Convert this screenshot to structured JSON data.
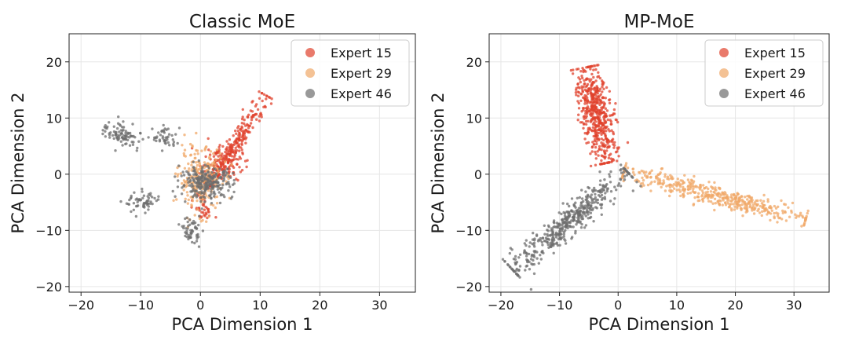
{
  "colors": {
    "expert_15": "#e0412c",
    "expert_29": "#f0a868",
    "expert_46": "#6e6e6e",
    "grid": "#e6e6e6",
    "axis": "#222222"
  },
  "chart_data": [
    {
      "type": "scatter",
      "title": "Classic MoE",
      "xlabel": "PCA Dimension 1",
      "ylabel": "PCA Dimension 2",
      "xlim": [
        -22,
        36
      ],
      "ylim": [
        -21,
        25
      ],
      "xticks": [
        -20,
        -10,
        0,
        10,
        20,
        30
      ],
      "yticks": [
        -20,
        -10,
        0,
        10,
        20
      ],
      "grid": true,
      "legend": "top-right",
      "series": [
        {
          "name": "Expert 15",
          "color_key": "expert_15",
          "clusters": [
            {
              "shape": "line",
              "x1": 1.5,
              "y1": -2,
              "x2": 11,
              "y2": 14,
              "n": 220,
              "spread": 0.7
            },
            {
              "shape": "blob",
              "cx": 3.5,
              "cy": 2,
              "sx": 1.8,
              "sy": 1.6,
              "n": 120
            },
            {
              "shape": "blob",
              "cx": 0.5,
              "cy": -6,
              "sx": 0.8,
              "sy": 1.5,
              "n": 40
            }
          ]
        },
        {
          "name": "Expert 29",
          "color_key": "expert_29",
          "clusters": [
            {
              "shape": "blob",
              "cx": 0,
              "cy": -1,
              "sx": 1.8,
              "sy": 2.8,
              "n": 260
            }
          ]
        },
        {
          "name": "Expert 46",
          "color_key": "expert_46",
          "clusters": [
            {
              "shape": "blob",
              "cx": 1,
              "cy": -1.5,
              "sx": 2.2,
              "sy": 1.4,
              "n": 260
            },
            {
              "shape": "line",
              "x1": -16,
              "y1": 8.5,
              "x2": -10,
              "y2": 5.5,
              "n": 90,
              "spread": 0.9
            },
            {
              "shape": "blob",
              "cx": -6,
              "cy": 6.5,
              "sx": 1.0,
              "sy": 1.0,
              "n": 45
            },
            {
              "shape": "blob",
              "cx": -9.5,
              "cy": -5,
              "sx": 1.6,
              "sy": 0.9,
              "n": 60
            },
            {
              "shape": "blob",
              "cx": -1.5,
              "cy": -10,
              "sx": 0.7,
              "sy": 1.2,
              "n": 55
            }
          ]
        }
      ]
    },
    {
      "type": "scatter",
      "title": "MP-MoE",
      "xlabel": "PCA Dimension 1",
      "ylabel": "PCA Dimension 2",
      "xlim": [
        -22,
        36
      ],
      "ylim": [
        -21,
        25
      ],
      "xticks": [
        -20,
        -10,
        0,
        10,
        20,
        30
      ],
      "yticks": [
        -20,
        -10,
        0,
        10,
        20
      ],
      "grid": true,
      "legend": "top-right",
      "series": [
        {
          "name": "Expert 15",
          "color_key": "expert_15",
          "clusters": [
            {
              "shape": "line",
              "x1": -5.5,
              "y1": 19,
              "x2": -2,
              "y2": 2,
              "n": 520,
              "spread": 1.3
            }
          ]
        },
        {
          "name": "Expert 29",
          "color_key": "expert_29",
          "clusters": [
            {
              "shape": "line",
              "x1": 1,
              "y1": 0.5,
              "x2": 32,
              "y2": -8,
              "n": 460,
              "spread": 0.9
            }
          ]
        },
        {
          "name": "Expert 46",
          "color_key": "expert_46",
          "clusters": [
            {
              "shape": "line",
              "x1": 1.5,
              "y1": 0.5,
              "x2": -18,
              "y2": -17,
              "n": 480,
              "spread": 1.1
            }
          ]
        }
      ]
    }
  ]
}
